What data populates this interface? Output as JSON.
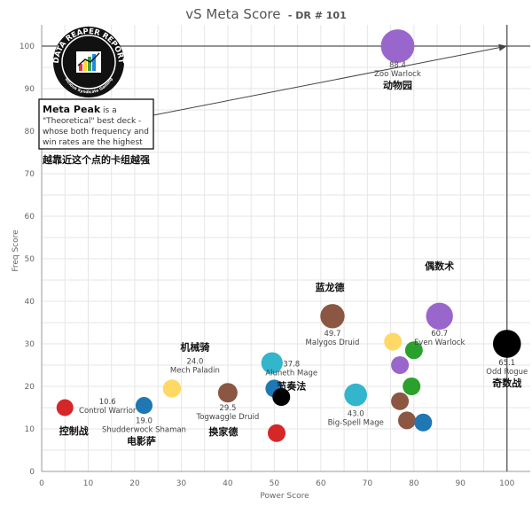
{
  "chart_data": {
    "type": "scatter",
    "title": "vS Meta Score",
    "subtitle": "- DR # 101",
    "xlabel": "Power Score",
    "ylabel": "Freq Score",
    "xlim": [
      0,
      105
    ],
    "ylim": [
      0,
      105
    ],
    "xticks": [
      0,
      10,
      20,
      30,
      40,
      50,
      60,
      70,
      80,
      90,
      100
    ],
    "yticks": [
      0,
      10,
      20,
      30,
      40,
      50,
      60,
      70,
      80,
      90,
      100
    ],
    "grid": true,
    "meta_peak": {
      "x": 100,
      "y": 100
    },
    "points": [
      {
        "x": 76.5,
        "y": 100.0,
        "color": "#9966cc",
        "label": "88.4",
        "name": "Zoo Warlock",
        "cn": "动物园"
      },
      {
        "x": 85.5,
        "y": 36.5,
        "color": "#9966cc",
        "label": "60.7",
        "name": "Even Warlock",
        "cn": "偶数术"
      },
      {
        "x": 100.0,
        "y": 30.0,
        "color": "#000000",
        "label": "65.1",
        "name": "Odd Rogue",
        "cn": "奇数战"
      },
      {
        "x": 62.5,
        "y": 36.5,
        "color": "#8b5742",
        "label": "49.7",
        "name": "Malygos Druid",
        "cn": "蓝龙德"
      },
      {
        "x": 49.5,
        "y": 25.5,
        "color": "#33b5cc",
        "label": "37.8",
        "name": "Aluneth Mage",
        "cn": "节奏法"
      },
      {
        "x": 28.0,
        "y": 19.5,
        "color": "#ffd966",
        "label": "24.0",
        "name": "Mech Paladin",
        "cn": "机械骑"
      },
      {
        "x": 40.0,
        "y": 18.5,
        "color": "#8b5742",
        "label": "29.5",
        "name": "Togwaggle Druid",
        "cn": "换家德"
      },
      {
        "x": 67.5,
        "y": 18.0,
        "color": "#33b5cc",
        "label": "43.0",
        "name": "Big-Spell Mage",
        "cn": ""
      },
      {
        "x": 5.0,
        "y": 15.0,
        "color": "#d62728",
        "label": "10.6",
        "name": "Control Warrior",
        "cn": "控制战"
      },
      {
        "x": 22.0,
        "y": 15.5,
        "color": "#1f77b4",
        "label": "19.0",
        "name": "Shudderwock Shaman",
        "cn": "电影萨"
      },
      {
        "x": 50.0,
        "y": 19.5,
        "color": "#1f77b4",
        "label": "",
        "name": "",
        "cn": ""
      },
      {
        "x": 51.5,
        "y": 17.5,
        "color": "#000000",
        "label": "",
        "name": "",
        "cn": ""
      },
      {
        "x": 50.5,
        "y": 9.0,
        "color": "#d62728",
        "label": "",
        "name": "",
        "cn": ""
      },
      {
        "x": 75.5,
        "y": 30.5,
        "color": "#ffd966",
        "label": "",
        "name": "",
        "cn": ""
      },
      {
        "x": 80.0,
        "y": 28.5,
        "color": "#2ca02c",
        "label": "",
        "name": "",
        "cn": ""
      },
      {
        "x": 77.0,
        "y": 25.0,
        "color": "#9966cc",
        "label": "",
        "name": "",
        "cn": ""
      },
      {
        "x": 79.5,
        "y": 20.0,
        "color": "#2ca02c",
        "label": "",
        "name": "",
        "cn": ""
      },
      {
        "x": 77.0,
        "y": 16.5,
        "color": "#8b5742",
        "label": "",
        "name": "",
        "cn": ""
      },
      {
        "x": 78.5,
        "y": 12.0,
        "color": "#8b5742",
        "label": "",
        "name": "",
        "cn": ""
      },
      {
        "x": 82.0,
        "y": 11.5,
        "color": "#1f77b4",
        "label": "",
        "name": "",
        "cn": ""
      }
    ]
  },
  "annotation": {
    "bold": "Meta Peak",
    "lines": [
      " is a",
      "\"Theoretical\" best deck -",
      "whose both frequency and",
      "win rates are the highest"
    ],
    "cn": "越靠近这个点的卡组越强"
  },
  "logo": {
    "top_text": "DATA REAPER REPORT",
    "bottom_text": "Vicious Syndicate Gaming"
  },
  "colors": {
    "background": "#ffffff",
    "grid": "#e6e6e6",
    "axis": "#999999",
    "guide": "#555555"
  }
}
